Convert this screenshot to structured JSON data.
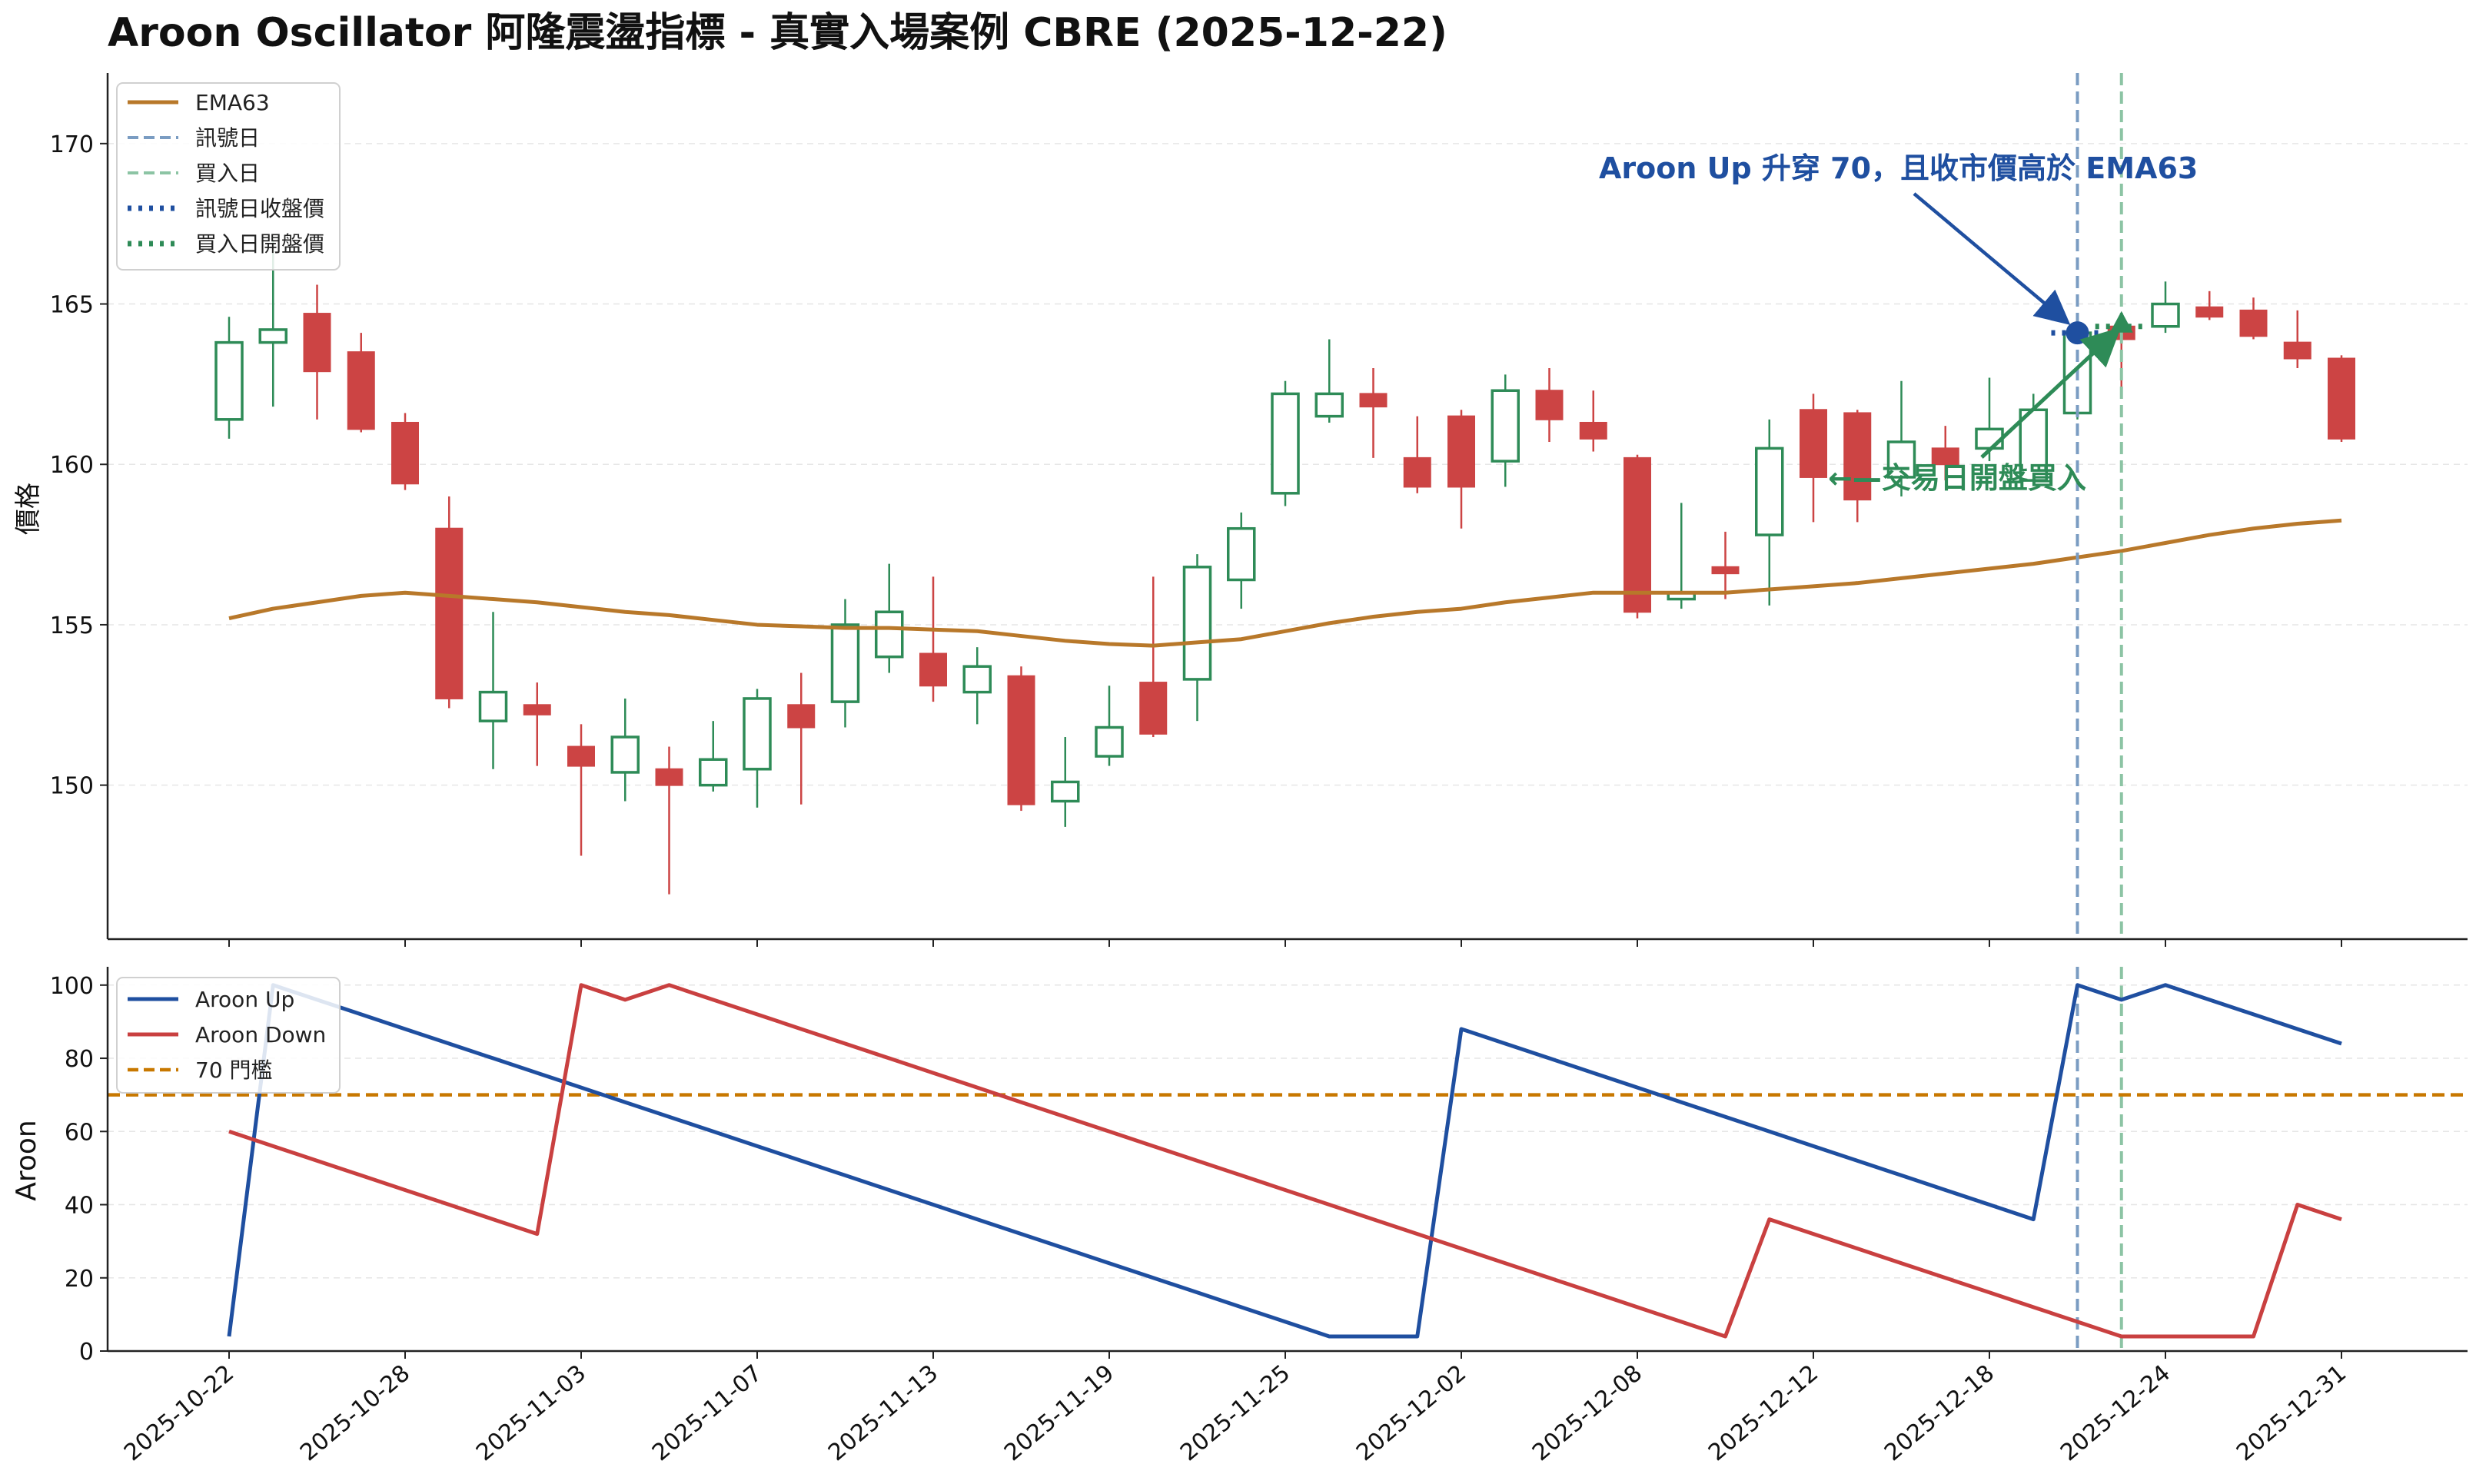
{
  "colors": {
    "up": "#2e8b57",
    "down": "#cc4444",
    "ema": "#b8782a",
    "signal_line": "#7a9cc2",
    "buy_line": "#8cc4a4",
    "signal_price": "#1f4fa0",
    "buy_price": "#2e8b57",
    "aroon_up": "#1f4fa0",
    "aroon_down": "#c94040",
    "threshold": "#c87800",
    "annotation_blue": "#1f4fa0",
    "annotation_green": "#2e8b57",
    "grid": "#e6e6e6",
    "axis": "#222222"
  },
  "chart_data": [
    {
      "type": "candlestick",
      "title": "Aroon Oscillator 阿隆震盪指標 - 真實入場案例 CBRE (2025-12-22)",
      "ylabel": "價格",
      "ylim": [
        145.2,
        172.2
      ],
      "yticks": [
        150,
        155,
        160,
        165,
        170
      ],
      "grid": true,
      "legend_position": "top-left",
      "legend": [
        "EMA63",
        "訊號日",
        "買入日",
        "訊號日收盤價",
        "買入日開盤價"
      ],
      "candles": [
        {
          "o": 161.4,
          "h": 164.6,
          "l": 160.8,
          "c": 163.8
        },
        {
          "o": 163.8,
          "h": 167.0,
          "l": 161.8,
          "c": 164.2
        },
        {
          "o": 164.7,
          "h": 165.6,
          "l": 161.4,
          "c": 162.9
        },
        {
          "o": 163.5,
          "h": 164.1,
          "l": 161.0,
          "c": 161.1
        },
        {
          "o": 161.3,
          "h": 161.6,
          "l": 159.2,
          "c": 159.4
        },
        {
          "o": 158.0,
          "h": 159.0,
          "l": 152.4,
          "c": 152.7
        },
        {
          "o": 152.0,
          "h": 155.4,
          "l": 150.5,
          "c": 152.9
        },
        {
          "o": 152.5,
          "h": 153.2,
          "l": 150.6,
          "c": 152.2
        },
        {
          "o": 151.2,
          "h": 151.9,
          "l": 147.8,
          "c": 150.6
        },
        {
          "o": 150.4,
          "h": 152.7,
          "l": 149.5,
          "c": 151.5
        },
        {
          "o": 150.5,
          "h": 151.2,
          "l": 146.6,
          "c": 150.0
        },
        {
          "o": 150.0,
          "h": 152.0,
          "l": 149.8,
          "c": 150.8
        },
        {
          "o": 150.5,
          "h": 153.0,
          "l": 149.3,
          "c": 152.7
        },
        {
          "o": 152.5,
          "h": 153.5,
          "l": 149.4,
          "c": 151.8
        },
        {
          "o": 152.6,
          "h": 155.8,
          "l": 151.8,
          "c": 155.0
        },
        {
          "o": 154.0,
          "h": 156.9,
          "l": 153.5,
          "c": 155.4
        },
        {
          "o": 154.1,
          "h": 156.5,
          "l": 152.6,
          "c": 153.1
        },
        {
          "o": 152.9,
          "h": 154.3,
          "l": 151.9,
          "c": 153.7
        },
        {
          "o": 153.4,
          "h": 153.7,
          "l": 149.2,
          "c": 149.4
        },
        {
          "o": 149.5,
          "h": 151.5,
          "l": 148.7,
          "c": 150.1
        },
        {
          "o": 150.9,
          "h": 153.1,
          "l": 150.6,
          "c": 151.8
        },
        {
          "o": 153.2,
          "h": 156.5,
          "l": 151.5,
          "c": 151.6
        },
        {
          "o": 153.3,
          "h": 157.2,
          "l": 152.0,
          "c": 156.8
        },
        {
          "o": 156.4,
          "h": 158.5,
          "l": 155.5,
          "c": 158.0
        },
        {
          "o": 159.1,
          "h": 162.6,
          "l": 158.7,
          "c": 162.2
        },
        {
          "o": 161.5,
          "h": 163.9,
          "l": 161.3,
          "c": 162.2
        },
        {
          "o": 162.2,
          "h": 163.0,
          "l": 160.2,
          "c": 161.8
        },
        {
          "o": 160.2,
          "h": 161.5,
          "l": 159.1,
          "c": 159.3
        },
        {
          "o": 161.5,
          "h": 161.7,
          "l": 158.0,
          "c": 159.3
        },
        {
          "o": 160.1,
          "h": 162.8,
          "l": 159.3,
          "c": 162.3
        },
        {
          "o": 162.3,
          "h": 163.0,
          "l": 160.7,
          "c": 161.4
        },
        {
          "o": 161.3,
          "h": 162.3,
          "l": 160.4,
          "c": 160.8
        },
        {
          "o": 160.2,
          "h": 160.3,
          "l": 155.2,
          "c": 155.4
        },
        {
          "o": 155.8,
          "h": 158.8,
          "l": 155.5,
          "c": 156.0
        },
        {
          "o": 156.8,
          "h": 157.9,
          "l": 155.8,
          "c": 156.6
        },
        {
          "o": 157.8,
          "h": 161.4,
          "l": 155.6,
          "c": 160.5
        },
        {
          "o": 161.7,
          "h": 162.2,
          "l": 158.2,
          "c": 159.6
        },
        {
          "o": 161.6,
          "h": 161.7,
          "l": 158.2,
          "c": 158.9
        },
        {
          "o": 159.6,
          "h": 162.6,
          "l": 159.0,
          "c": 160.7
        },
        {
          "o": 160.5,
          "h": 161.2,
          "l": 159.5,
          "c": 160.0
        },
        {
          "o": 160.5,
          "h": 162.7,
          "l": 160.1,
          "c": 161.1
        },
        {
          "o": 159.5,
          "h": 162.2,
          "l": 159.5,
          "c": 161.7
        },
        {
          "o": 161.6,
          "h": 164.3,
          "l": 161.4,
          "c": 164.1
        },
        {
          "o": 164.3,
          "h": 164.4,
          "l": 162.4,
          "c": 163.9
        },
        {
          "o": 164.3,
          "h": 165.7,
          "l": 164.1,
          "c": 165.0
        },
        {
          "o": 164.9,
          "h": 165.4,
          "l": 164.5,
          "c": 164.6
        },
        {
          "o": 164.8,
          "h": 165.2,
          "l": 163.9,
          "c": 164.0
        },
        {
          "o": 163.8,
          "h": 164.8,
          "l": 163.0,
          "c": 163.3
        },
        {
          "o": 163.3,
          "h": 163.4,
          "l": 160.7,
          "c": 160.8
        }
      ],
      "ema63": [
        155.2,
        155.5,
        155.7,
        155.9,
        156.0,
        155.9,
        155.8,
        155.7,
        155.55,
        155.4,
        155.3,
        155.15,
        155.0,
        154.95,
        154.9,
        154.9,
        154.85,
        154.8,
        154.65,
        154.5,
        154.4,
        154.35,
        154.45,
        154.55,
        154.8,
        155.05,
        155.25,
        155.4,
        155.5,
        155.7,
        155.85,
        156.0,
        156.0,
        156.0,
        156.0,
        156.1,
        156.2,
        156.3,
        156.45,
        156.6,
        156.75,
        156.9,
        157.1,
        157.3,
        157.55,
        157.8,
        158.0,
        158.15,
        158.25
      ],
      "signal_index": 42,
      "buy_index": 43,
      "signal_close": 164.1,
      "buy_open": 164.3
    },
    {
      "type": "line",
      "ylabel": "Aroon",
      "ylim": [
        0,
        105
      ],
      "yticks": [
        0,
        20,
        40,
        60,
        80,
        100
      ],
      "grid": true,
      "legend_position": "top-left",
      "x": [
        "2025-10-22",
        "2025-10-23",
        "2025-10-24",
        "2025-10-27",
        "2025-10-28",
        "2025-10-29",
        "2025-10-30",
        "2025-10-31",
        "2025-11-03",
        "2025-11-04",
        "2025-11-05",
        "2025-11-06",
        "2025-11-07",
        "2025-11-10",
        "2025-11-11",
        "2025-11-12",
        "2025-11-13",
        "2025-11-14",
        "2025-11-17",
        "2025-11-18",
        "2025-11-19",
        "2025-11-20",
        "2025-11-21",
        "2025-11-24",
        "2025-11-25",
        "2025-11-26",
        "2025-11-28",
        "2025-12-01",
        "2025-12-02",
        "2025-12-03",
        "2025-12-04",
        "2025-12-05",
        "2025-12-08",
        "2025-12-09",
        "2025-12-10",
        "2025-12-11",
        "2025-12-12",
        "2025-12-15",
        "2025-12-16",
        "2025-12-17",
        "2025-12-18",
        "2025-12-19",
        "2025-12-22",
        "2025-12-23",
        "2025-12-24",
        "2025-12-26",
        "2025-12-29",
        "2025-12-30",
        "2025-12-31"
      ],
      "xticks": [
        "2025-10-22",
        "2025-10-28",
        "2025-11-03",
        "2025-11-07",
        "2025-11-13",
        "2025-11-19",
        "2025-11-25",
        "2025-12-02",
        "2025-12-08",
        "2025-12-12",
        "2025-12-18",
        "2025-12-24",
        "2025-12-31"
      ],
      "threshold": 70,
      "series": [
        {
          "name": "Aroon Up",
          "values": [
            4,
            100,
            96,
            92,
            88,
            84,
            80,
            76,
            72,
            68,
            64,
            60,
            56,
            52,
            48,
            44,
            40,
            36,
            32,
            28,
            24,
            20,
            16,
            12,
            8,
            4,
            4,
            4,
            88,
            84,
            80,
            76,
            72,
            68,
            64,
            60,
            56,
            52,
            48,
            44,
            40,
            36,
            100,
            96,
            100,
            96,
            92,
            88,
            84
          ]
        },
        {
          "name": "Aroon Down",
          "values": [
            60,
            56,
            52,
            48,
            44,
            40,
            36,
            32,
            100,
            96,
            100,
            96,
            92,
            88,
            84,
            80,
            76,
            72,
            68,
            64,
            60,
            56,
            52,
            48,
            44,
            40,
            36,
            32,
            28,
            24,
            20,
            16,
            12,
            8,
            4,
            36,
            32,
            28,
            24,
            20,
            16,
            12,
            8,
            4,
            4,
            4,
            4,
            40,
            36
          ]
        },
        {
          "name": "70 門檻"
        }
      ]
    }
  ],
  "annotations": {
    "signal_text": "Aroon Up 升穿 70，且收市價高於 EMA63",
    "buy_text": "←—交易日開盤買入"
  }
}
